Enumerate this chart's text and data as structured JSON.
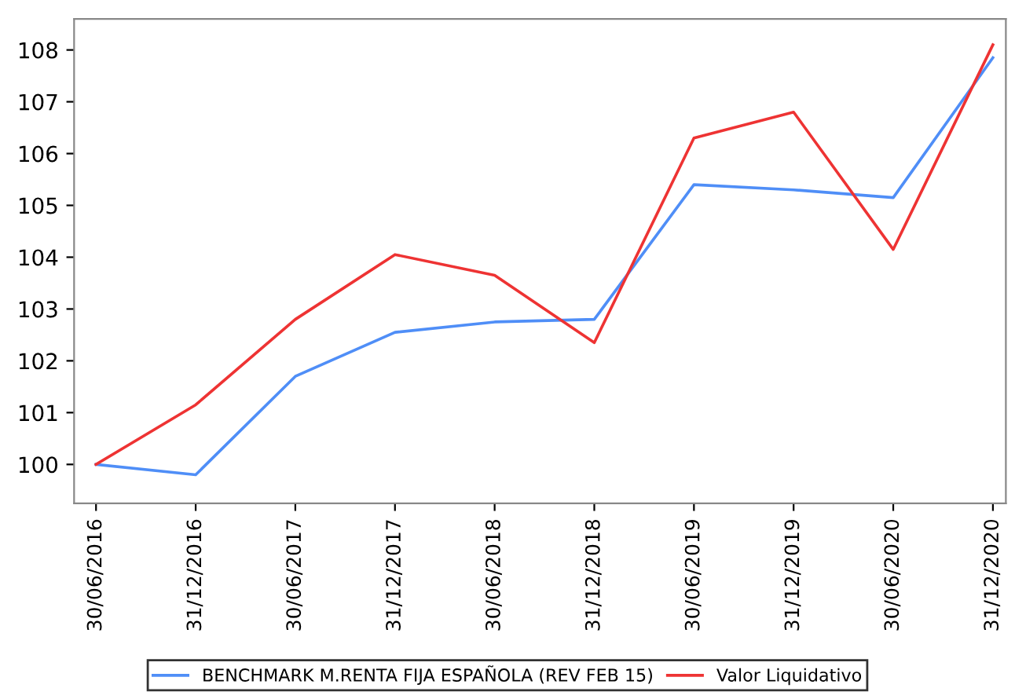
{
  "chart_data": {
    "type": "line",
    "categories": [
      "30/06/2016",
      "31/12/2016",
      "30/06/2017",
      "31/12/2017",
      "30/06/2018",
      "31/12/2018",
      "30/06/2019",
      "31/12/2019",
      "30/06/2020",
      "31/12/2020"
    ],
    "series": [
      {
        "name": "BENCHMARK M.RENTA FIJA ESPAÑOLA (REV FEB 15)",
        "color": "#4f8ef7",
        "values": [
          100.0,
          99.8,
          101.7,
          102.55,
          102.75,
          102.8,
          105.4,
          105.3,
          105.15,
          107.85
        ]
      },
      {
        "name": "Valor Liquidativo",
        "color": "#ee3333",
        "values": [
          100.0,
          101.15,
          102.8,
          104.05,
          103.65,
          102.35,
          106.3,
          106.8,
          104.15,
          108.1
        ]
      }
    ],
    "ylim": [
      99.25,
      108.6
    ],
    "yticks": [
      100,
      101,
      102,
      103,
      104,
      105,
      106,
      107,
      108
    ],
    "grid": false,
    "legend": "bottom",
    "marker": "none",
    "line_style": "solid"
  }
}
